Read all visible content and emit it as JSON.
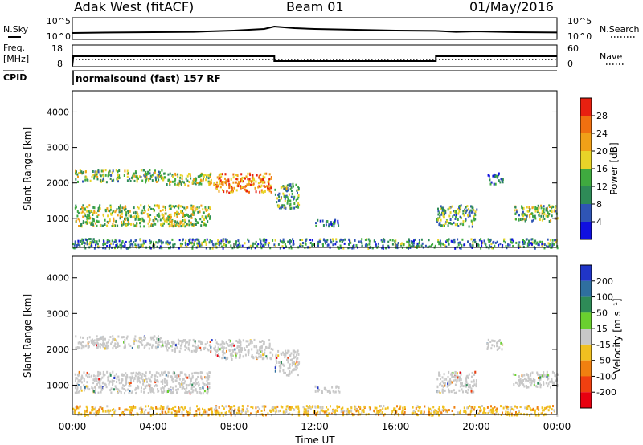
{
  "header": {
    "station": "Adak West (fitACF)",
    "beam": "Beam 01",
    "date": "01/May/2016"
  },
  "labels": {
    "nsky": "N.Sky",
    "nsearch": "N.Search",
    "freq": "Freq.",
    "mhz": "[MHz]",
    "nave": "Nave",
    "cpid": "CPID",
    "cpid_value": "normalsound (fast) 157 RF",
    "slant_range": "Slant Range [km]",
    "power_label": "Power [dB]",
    "velocity_label": "Velocity [m s⁻¹]"
  },
  "chart_data": [
    {
      "type": "line",
      "name": "noise",
      "x_unit": "hours UT",
      "xlim": [
        0,
        24
      ],
      "left_ticks": [
        "10^5",
        "10^0"
      ],
      "right_ticks": [
        "10^5",
        "10^0"
      ],
      "x": [
        0,
        2,
        4,
        6,
        8,
        9.5,
        10,
        11,
        12,
        14,
        16,
        18,
        19,
        20,
        22,
        24
      ],
      "values": [
        0.35,
        0.38,
        0.4,
        0.42,
        0.5,
        0.6,
        0.75,
        0.65,
        0.6,
        0.55,
        0.5,
        0.48,
        0.42,
        0.45,
        0.4,
        0.38
      ]
    },
    {
      "type": "line",
      "name": "frequency",
      "x_unit": "hours UT",
      "xlim": [
        0,
        24
      ],
      "left_ticks": [
        "18",
        "8"
      ],
      "right_ticks": [
        "60",
        "0"
      ],
      "frequency_mhz": {
        "x": [
          0,
          0.05,
          10,
          10,
          18,
          18,
          24
        ],
        "y": [
          8,
          13,
          13,
          10.5,
          10.5,
          13,
          13
        ]
      },
      "nave_dotted": {
        "x": [
          0,
          24
        ],
        "y": [
          10
        ]
      }
    },
    {
      "type": "heatmap",
      "name": "power",
      "xlabel": "Time UT",
      "ylabel": "Slant Range [km]",
      "xlim": [
        0,
        24
      ],
      "ylim": [
        180,
        4600
      ],
      "yticks": [
        1000,
        2000,
        3000,
        4000
      ],
      "colorbar": {
        "label": "Power [dB]",
        "ticks": [
          4,
          8,
          12,
          16,
          20,
          24,
          28
        ],
        "colors": [
          "#1010e0",
          "#2f55b5",
          "#2e8b57",
          "#3faa3f",
          "#e8d428",
          "#f0a018",
          "#f07010",
          "#e82010"
        ]
      },
      "regions": [
        {
          "t0": 0.1,
          "t1": 4.5,
          "r0": 2050,
          "r1": 2400,
          "level": 0.45
        },
        {
          "t0": 4.5,
          "t1": 7.0,
          "r0": 1950,
          "r1": 2300,
          "level": 0.5
        },
        {
          "t0": 7.0,
          "t1": 9.9,
          "r0": 1750,
          "r1": 2300,
          "level": 0.75
        },
        {
          "t0": 0.1,
          "t1": 6.8,
          "r0": 800,
          "r1": 1400,
          "level": 0.5
        },
        {
          "t0": 10.0,
          "t1": 11.2,
          "r0": 1300,
          "r1": 2000,
          "level": 0.4
        },
        {
          "t0": 12.0,
          "t1": 13.2,
          "r0": 800,
          "r1": 1000,
          "level": 0.25
        },
        {
          "t0": 18.0,
          "t1": 20.0,
          "r0": 800,
          "r1": 1400,
          "level": 0.35
        },
        {
          "t0": 20.5,
          "t1": 21.3,
          "r0": 2000,
          "r1": 2300,
          "level": 0.2
        },
        {
          "t0": 21.8,
          "t1": 24.0,
          "r0": 950,
          "r1": 1400,
          "level": 0.45
        },
        {
          "t0": 0.0,
          "t1": 24.0,
          "r0": 180,
          "r1": 450,
          "level": 0.3
        }
      ]
    },
    {
      "type": "heatmap",
      "name": "velocity",
      "xlabel": "Time UT",
      "ylabel": "Slant Range [km]",
      "xlim": [
        0,
        24
      ],
      "ylim": [
        180,
        4600
      ],
      "yticks": [
        1000,
        2000,
        3000,
        4000
      ],
      "xticks": [
        "00:00",
        "04:00",
        "08:00",
        "12:00",
        "16:00",
        "20:00",
        "00:00"
      ],
      "colorbar": {
        "label": "Velocity [m s⁻¹]",
        "ticks": [
          200,
          100,
          50,
          15,
          -15,
          -50,
          -100,
          -200
        ],
        "colors": [
          "#2035c8",
          "#2f6f9f",
          "#2e8b57",
          "#6ad02f",
          "#c8c8c8",
          "#f0c020",
          "#f08010",
          "#f04010",
          "#e80010"
        ]
      },
      "regions": [
        {
          "t0": 0.1,
          "t1": 4.5,
          "r0": 2050,
          "r1": 2400,
          "level": 0.5
        },
        {
          "t0": 4.5,
          "t1": 7.0,
          "r0": 1950,
          "r1": 2300,
          "level": 0.5
        },
        {
          "t0": 7.0,
          "t1": 9.9,
          "r0": 1750,
          "r1": 2300,
          "level": 0.5
        },
        {
          "t0": 0.1,
          "t1": 6.8,
          "r0": 800,
          "r1": 1400,
          "level": 0.5
        },
        {
          "t0": 10.0,
          "t1": 11.2,
          "r0": 1300,
          "r1": 2000,
          "level": 0.5
        },
        {
          "t0": 12.0,
          "t1": 13.2,
          "r0": 800,
          "r1": 1000,
          "level": 0.3
        },
        {
          "t0": 18.0,
          "t1": 20.0,
          "r0": 800,
          "r1": 1400,
          "level": 0.5
        },
        {
          "t0": 20.5,
          "t1": 21.3,
          "r0": 2000,
          "r1": 2300,
          "level": 0.5
        },
        {
          "t0": 21.8,
          "t1": 24.0,
          "r0": 950,
          "r1": 1400,
          "level": 0.5
        },
        {
          "t0": 0.0,
          "t1": 24.0,
          "r0": 180,
          "r1": 450,
          "level": 0.65
        }
      ]
    }
  ]
}
